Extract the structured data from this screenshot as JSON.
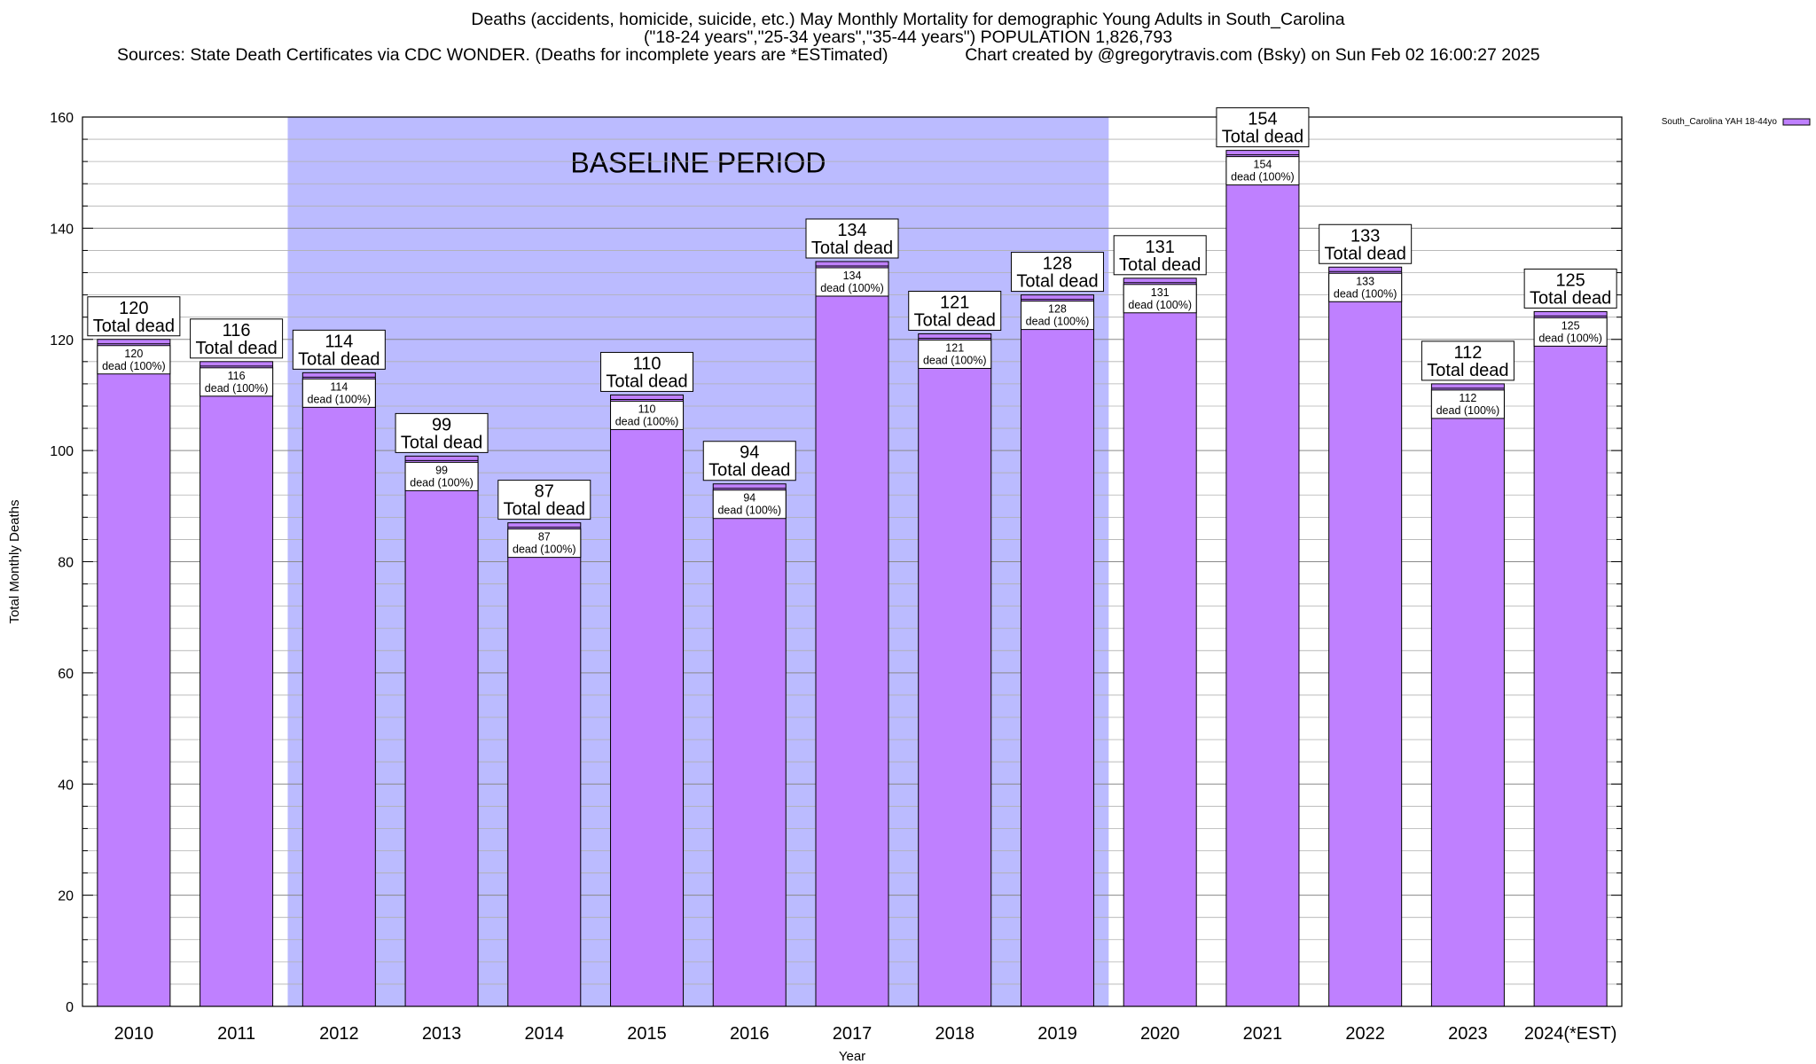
{
  "header": {
    "title_line1": "Deaths (accidents, homicide, suicide, etc.) May Monthly Mortality for demographic Young Adults in South_Carolina",
    "title_line2": "(\"18-24 years\",\"25-34 years\",\"35-44 years\") POPULATION 1,826,793",
    "sources": "Sources: State Death Certificates via CDC WONDER. (Deaths for incomplete years are *ESTimated)",
    "credit": "Chart created by @gregorytravis.com (Bsky) on Sun Feb 02 16:00:27 2025"
  },
  "chart_data": {
    "type": "bar",
    "xlabel": "Year",
    "ylabel": "Total Monthly Deaths",
    "ylim": [
      0,
      160
    ],
    "yticks": [
      0,
      20,
      40,
      60,
      80,
      100,
      120,
      140,
      160
    ],
    "categories": [
      "2010",
      "2011",
      "2012",
      "2013",
      "2014",
      "2015",
      "2016",
      "2017",
      "2018",
      "2019",
      "2020",
      "2021",
      "2022",
      "2023",
      "2024(*EST)"
    ],
    "series": [
      {
        "name": "South_Carolina YAH 18-44yo",
        "color": "#bf80ff",
        "values": [
          120,
          116,
          114,
          99,
          87,
          110,
          94,
          134,
          121,
          128,
          131,
          154,
          133,
          112,
          125
        ]
      }
    ],
    "total_label_suffix": "Total dead",
    "inner_label_suffix": "dead (100%)",
    "baseline_period": {
      "label": "BASELINE PERIOD",
      "start": "2012",
      "end": "2019",
      "color": "#bbbbff"
    },
    "grid": true,
    "legend_position": "top-right"
  }
}
